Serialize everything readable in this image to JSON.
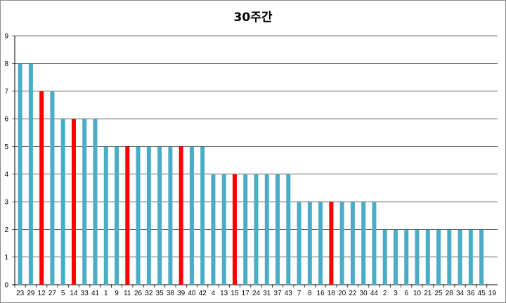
{
  "chart_data": {
    "type": "bar",
    "title": "30주간",
    "xlabel": "",
    "ylabel": "",
    "ylim": [
      0,
      9
    ],
    "yticks": [
      "0",
      "1",
      "2",
      "3",
      "4",
      "5",
      "6",
      "7",
      "8",
      "9"
    ],
    "grid": true,
    "legend": "none",
    "colors": {
      "default": "#4bacc6",
      "highlight": "#ff0000",
      "grid": "#000000"
    },
    "categories": [
      "23",
      "29",
      "12",
      "27",
      "5",
      "14",
      "33",
      "41",
      "1",
      "9",
      "11",
      "26",
      "32",
      "35",
      "38",
      "39",
      "40",
      "42",
      "4",
      "13",
      "15",
      "17",
      "24",
      "31",
      "37",
      "43",
      "7",
      "8",
      "16",
      "18",
      "20",
      "22",
      "30",
      "44",
      "2",
      "3",
      "6",
      "10",
      "21",
      "25",
      "28",
      "34",
      "36",
      "45",
      "19"
    ],
    "values": [
      8,
      8,
      7,
      7,
      6,
      6,
      6,
      6,
      5,
      5,
      5,
      5,
      5,
      5,
      5,
      5,
      5,
      5,
      4,
      4,
      4,
      4,
      4,
      4,
      4,
      4,
      3,
      3,
      3,
      3,
      3,
      3,
      3,
      3,
      2,
      2,
      2,
      2,
      2,
      2,
      2,
      2,
      2,
      2,
      0
    ],
    "highlighted": [
      "12",
      "14",
      "11",
      "39",
      "15",
      "18"
    ]
  }
}
